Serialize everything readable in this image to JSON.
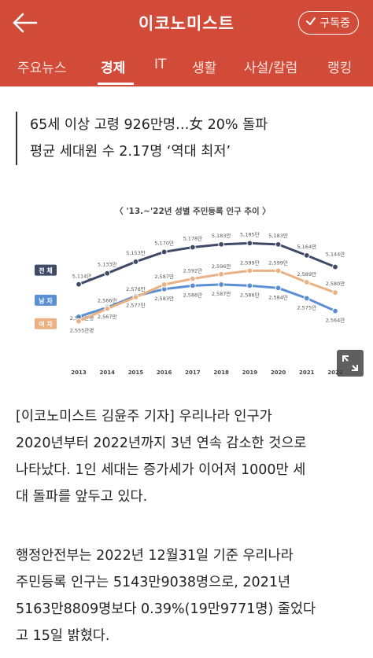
{
  "header": {
    "title": "이코노미스트",
    "subscribe_label": "구독중"
  },
  "nav": {
    "items": [
      "주요뉴스",
      "경제",
      "IT",
      "생활",
      "사설/칼럼",
      "랭킹"
    ],
    "active": "경제"
  },
  "article": {
    "headline_lines": [
      "65세 이상 고령 926만명…女 20% 돌파",
      "평균 세대원 수 2.17명 ‘역대 최저’"
    ],
    "paragraph1_lines": [
      "[이코노미스트 김윤주 기자] 우리나라 인구가",
      "2020년부터 2022년까지 3년 연속 감소한 것으로",
      "나타났다. 1인 세대는 증가세가 이어져 1000만 세",
      "대 돌파를 앞두고 있다."
    ],
    "paragraph2_lines": [
      "행정안전부는 2022년 12월31일 기준 우리나라",
      "주민등록 인구는 5143만9038명으로, 2021년",
      "5163만8809명보다 0.39%(19만9771명) 줄었다",
      "고 15일 밝혔다."
    ]
  },
  "chart_data": {
    "type": "line",
    "title": "〈 '13.~'22년 성별 주민등록 인구 추이 〉",
    "categories": [
      "2013",
      "2014",
      "2015",
      "2016",
      "2017",
      "2018",
      "2019",
      "2020",
      "2021",
      "2022"
    ],
    "series": [
      {
        "name": "전 체",
        "color": "#3e4a66",
        "values": [
          5114,
          5133,
          5153,
          5170,
          5178,
          5183,
          5185,
          5183,
          5164,
          5144
        ],
        "labels": [
          "5,114만",
          "5,133만",
          "5,153만",
          "5,170만",
          "5,178만",
          "5,183만",
          "5,185만",
          "5,183만",
          "5,164만",
          "5,144만"
        ]
      },
      {
        "name": "남 자",
        "color": "#5b8fd4",
        "values": [
          2559,
          2567,
          2577,
          2583,
          2586,
          2587,
          2586,
          2584,
          2575,
          2564
        ],
        "labels": [
          "2,559만명",
          "2,567만",
          "2,577만",
          "2,583만",
          "2,586만",
          "2,587만",
          "2,586만",
          "2,584만",
          "2,575만",
          "2,564만"
        ]
      },
      {
        "name": "여 자",
        "color": "#e9b184",
        "values": [
          2555,
          2566,
          2576,
          2587,
          2592,
          2596,
          2599,
          2599,
          2589,
          2580
        ],
        "labels": [
          "2,555만명",
          "2,566만",
          "2,576만",
          "2,587만",
          "2,592만",
          "2,596만",
          "2,599만",
          "2,599만",
          "2,589만",
          "2,580만"
        ]
      }
    ],
    "grid": false
  }
}
